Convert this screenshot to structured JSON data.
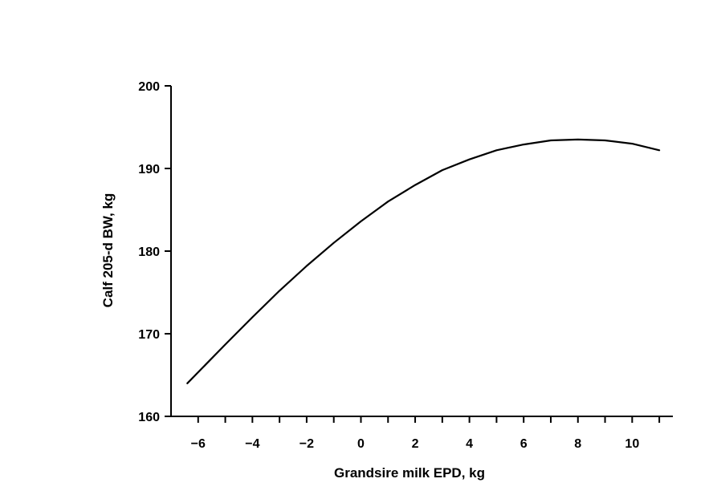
{
  "chart_data": {
    "type": "line",
    "title": "",
    "xlabel": "Grandsire milk EPD, kg",
    "ylabel": "Calf 205-d BW, kg",
    "xlim": [
      -7,
      11.5
    ],
    "ylim": [
      160,
      200
    ],
    "x_ticks": [
      -6,
      -4,
      -2,
      0,
      2,
      4,
      6,
      8,
      10
    ],
    "x_tick_labels": [
      "−6",
      "−4",
      "−2",
      "0",
      "2",
      "4",
      "6",
      "8",
      "10"
    ],
    "x_minor_ticks": [
      -5,
      -3,
      -1,
      1,
      3,
      5,
      7,
      9,
      11
    ],
    "y_ticks": [
      160,
      170,
      180,
      190,
      200
    ],
    "y_tick_labels": [
      "160",
      "170",
      "180",
      "190",
      "200"
    ],
    "grid": false,
    "line_color": "#000000",
    "series": [
      {
        "x": [
          -6.4,
          -5,
          -4,
          -3,
          -2,
          -1,
          0,
          1,
          2,
          3,
          4,
          5,
          6,
          7,
          8,
          9,
          10,
          11
        ],
        "y": [
          164.0,
          168.7,
          172.0,
          175.2,
          178.2,
          181.0,
          183.6,
          186.0,
          188.0,
          189.8,
          191.1,
          192.2,
          192.9,
          193.4,
          193.5,
          193.4,
          193.0,
          192.2
        ]
      }
    ]
  }
}
